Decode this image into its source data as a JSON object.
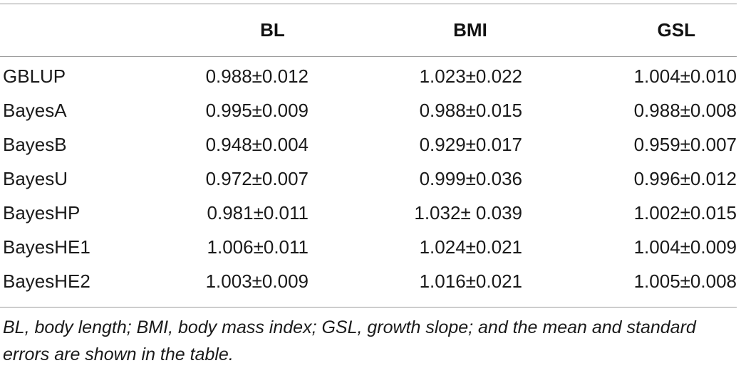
{
  "table": {
    "headers": [
      "",
      "BL",
      "BMI",
      "GSL"
    ],
    "rows": [
      {
        "model": "GBLUP",
        "bl": "0.988±0.012",
        "bmi": "1.023±0.022",
        "gsl": "1.004±0.010"
      },
      {
        "model": "BayesA",
        "bl": "0.995±0.009",
        "bmi": "0.988±0.015",
        "gsl": "0.988±0.008"
      },
      {
        "model": "BayesB",
        "bl": "0.948±0.004",
        "bmi": "0.929±0.017",
        "gsl": "0.959±0.007"
      },
      {
        "model": "BayesU",
        "bl": "0.972±0.007",
        "bmi": "0.999±0.036",
        "gsl": "0.996±0.012"
      },
      {
        "model": "BayesHP",
        "bl": "0.981±0.011",
        "bmi": "1.032± 0.039",
        "gsl": "1.002±0.015"
      },
      {
        "model": "BayesHE1",
        "bl": "1.006±0.011",
        "bmi": "1.024±0.021",
        "gsl": "1.004±0.009"
      },
      {
        "model": "BayesHE2",
        "bl": "1.003±0.009",
        "bmi": "1.016±0.021",
        "gsl": "1.005±0.008"
      }
    ]
  },
  "footnote": "BL, body length; BMI, body mass index; GSL, growth slope; and the mean and standard errors are shown in the table."
}
